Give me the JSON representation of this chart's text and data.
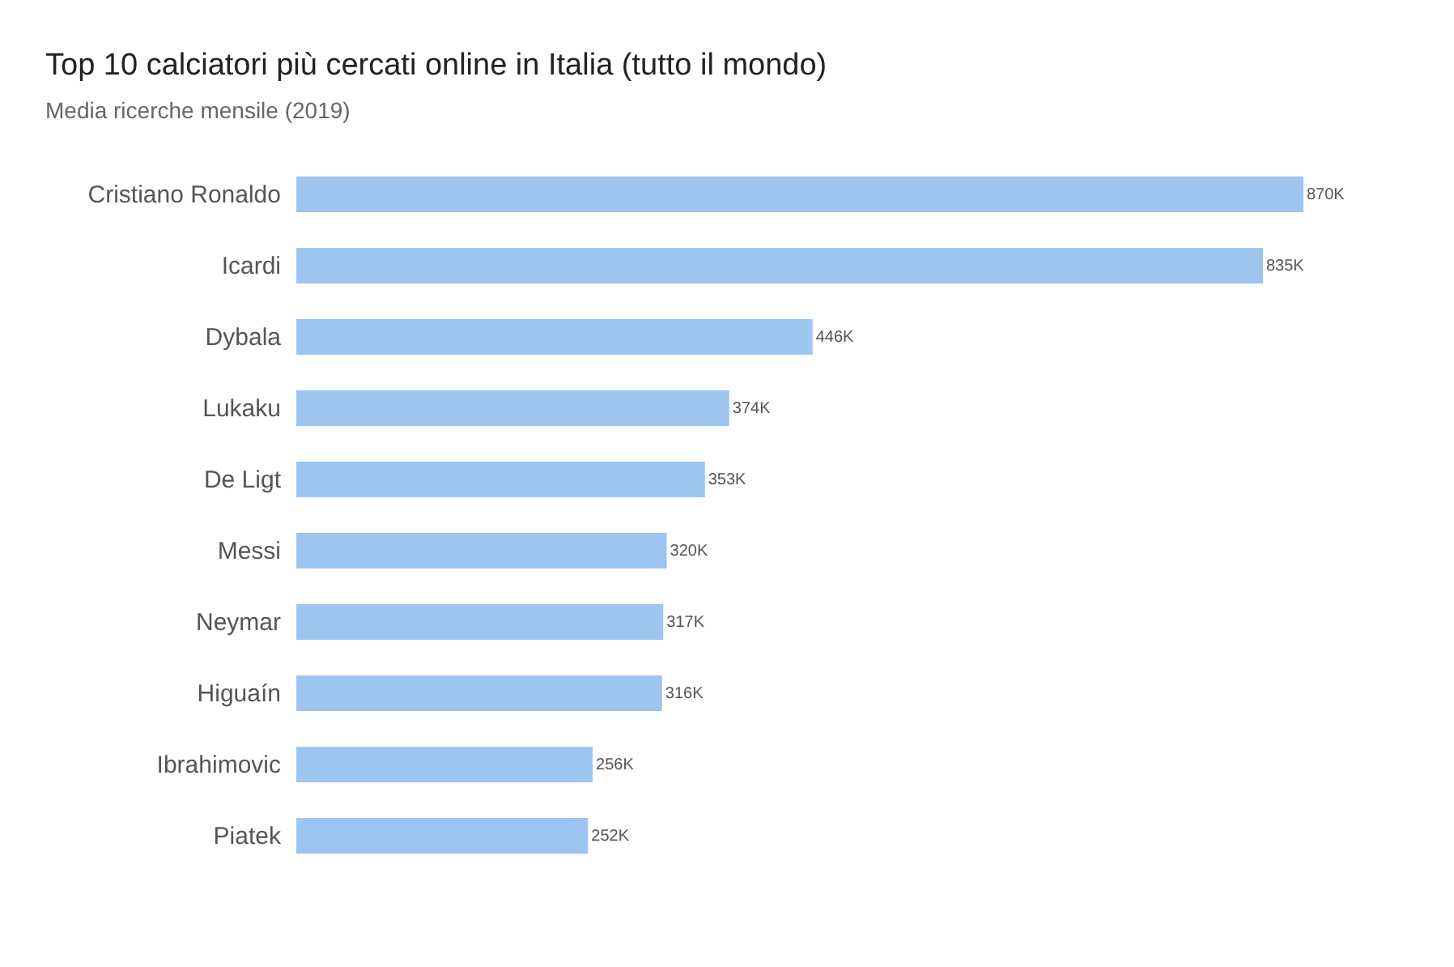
{
  "chart_data": {
    "type": "bar",
    "orientation": "horizontal",
    "title": "Top 10 calciatori più cercati online in Italia (tutto il mondo)",
    "subtitle": "Media ricerche mensile (2019)",
    "categories": [
      "Cristiano Ronaldo",
      "Icardi",
      "Dybala",
      "Lukaku",
      "De Ligt",
      "Messi",
      "Neymar",
      "Higuaín",
      "Ibrahimovic",
      "Piatek"
    ],
    "values": [
      870000,
      835000,
      446000,
      374000,
      353000,
      320000,
      317000,
      316000,
      256000,
      252000
    ],
    "value_labels": [
      "870K",
      "835K",
      "446K",
      "374K",
      "353K",
      "320K",
      "317K",
      "316K",
      "256K",
      "252K"
    ],
    "color": "#9ec5f0"
  }
}
